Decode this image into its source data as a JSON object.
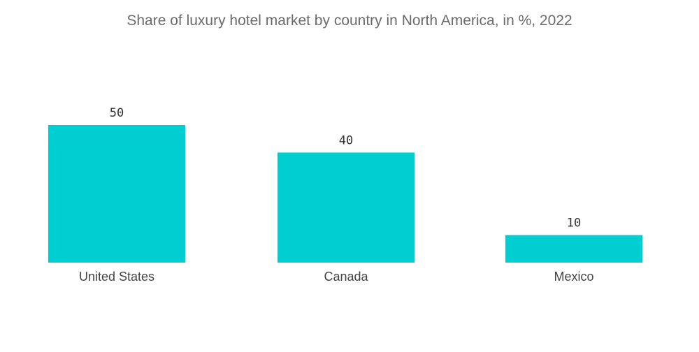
{
  "chart_data": {
    "type": "bar",
    "title": "Share of luxury hotel market by country in North America, in %, 2022",
    "categories": [
      "United States",
      "Canada",
      "Mexico"
    ],
    "values": [
      50,
      40,
      10
    ],
    "xlabel": "",
    "ylabel": "",
    "ylim": [
      0,
      50
    ],
    "grid": false,
    "legend": "none",
    "bar_color": "#00CED1",
    "data_labels": [
      "50",
      "40",
      "10"
    ]
  }
}
